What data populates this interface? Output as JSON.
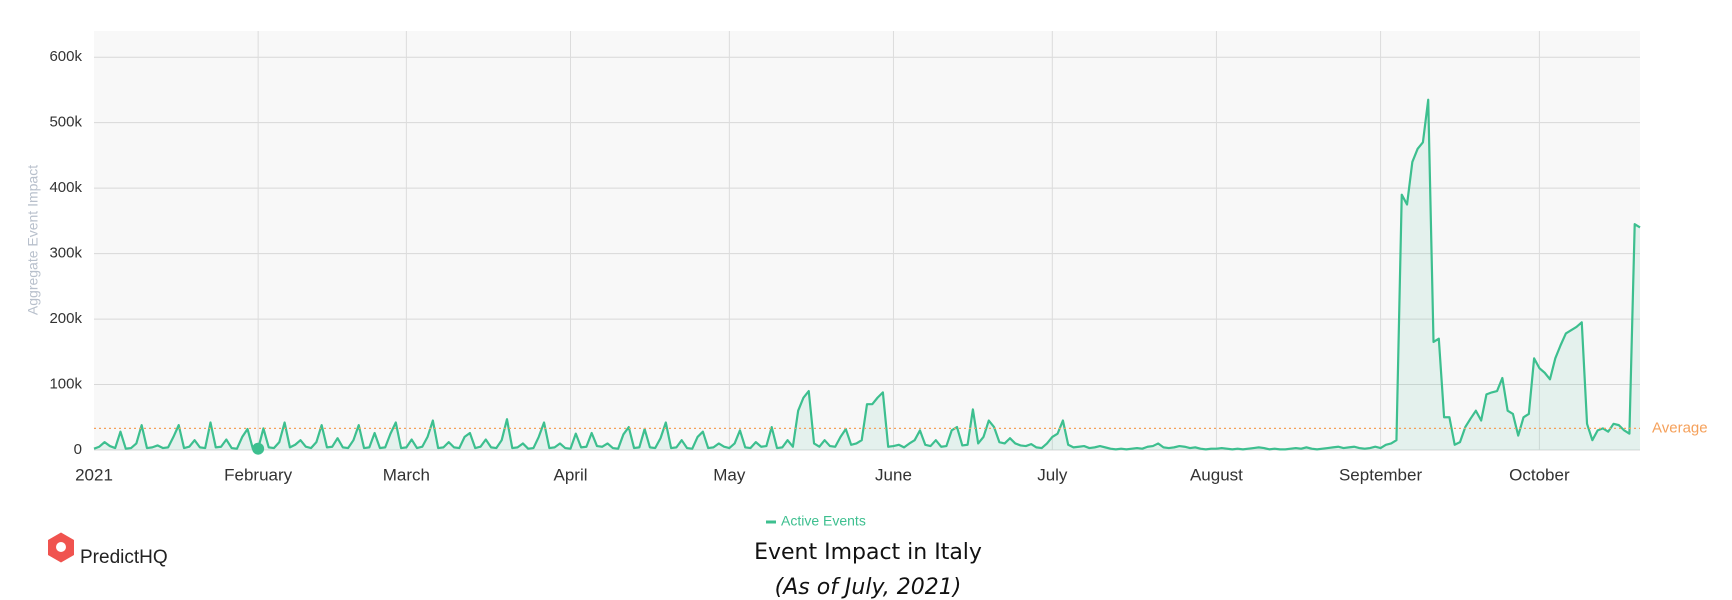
{
  "chart_data": {
    "type": "line",
    "title": "Event Impact in Italy",
    "subtitle": "(As of July, 2021)",
    "y_label": "Aggregate Event Impact",
    "logo": "PredictHQ",
    "categories": [
      "2021",
      null,
      null,
      null,
      null,
      null,
      null,
      null,
      null,
      null,
      null,
      null,
      null,
      null,
      null,
      null,
      null,
      null,
      null,
      null,
      null,
      null,
      null,
      null,
      null,
      null,
      null,
      null,
      null,
      null,
      null,
      "February",
      null,
      null,
      null,
      null,
      null,
      null,
      null,
      null,
      null,
      null,
      null,
      null,
      null,
      null,
      null,
      null,
      null,
      null,
      null,
      null,
      null,
      null,
      null,
      null,
      null,
      null,
      null,
      "March",
      null,
      null,
      null,
      null,
      null,
      null,
      null,
      null,
      null,
      null,
      null,
      null,
      null,
      null,
      null,
      null,
      null,
      null,
      null,
      null,
      null,
      null,
      null,
      null,
      null,
      null,
      null,
      null,
      null,
      null,
      "April",
      null,
      null,
      null,
      null,
      null,
      null,
      null,
      null,
      null,
      null,
      null,
      null,
      null,
      null,
      null,
      null,
      null,
      null,
      null,
      null,
      null,
      null,
      null,
      null,
      null,
      null,
      null,
      null,
      null,
      "May",
      null,
      null,
      null,
      null,
      null,
      null,
      null,
      null,
      null,
      null,
      null,
      null,
      null,
      null,
      null,
      null,
      null,
      null,
      null,
      null,
      null,
      null,
      null,
      null,
      null,
      null,
      null,
      null,
      null,
      null,
      "June",
      null,
      null,
      null,
      null,
      null,
      null,
      null,
      null,
      null,
      null,
      null,
      null,
      null,
      null,
      null,
      null,
      null,
      null,
      null,
      null,
      null,
      null,
      null,
      null,
      null,
      null,
      null,
      null,
      null,
      "July",
      null,
      null,
      null,
      null,
      null,
      null,
      null,
      null,
      null,
      null,
      null,
      null,
      null,
      null,
      null,
      null,
      null,
      null,
      null,
      null,
      null,
      null,
      null,
      null,
      null,
      null,
      null,
      null,
      null,
      null,
      "August",
      null,
      null,
      null,
      null,
      null,
      null,
      null,
      null,
      null,
      null,
      null,
      null,
      null,
      null,
      null,
      null,
      null,
      null,
      null,
      null,
      null,
      null,
      null,
      null,
      null,
      null,
      null,
      null,
      null,
      null,
      "September",
      null,
      null,
      null,
      null,
      null,
      null,
      null,
      null,
      null,
      null,
      null,
      null,
      null,
      null,
      null,
      null,
      null,
      null,
      null,
      null,
      null,
      null,
      null,
      null,
      null,
      null,
      null,
      null,
      null,
      "October",
      null,
      null,
      null,
      null,
      null,
      null,
      null,
      null,
      null,
      null,
      null,
      null,
      null,
      null,
      null,
      null,
      null,
      null,
      null
    ],
    "series": [
      {
        "name": "Active Events",
        "color": "#3dbf8f",
        "values": [
          2000,
          5000,
          12000,
          6000,
          3000,
          28000,
          2000,
          3000,
          10000,
          38000,
          3000,
          4000,
          7000,
          3000,
          4000,
          20000,
          38000,
          3000,
          5000,
          15000,
          4000,
          3000,
          42000,
          4000,
          5000,
          16000,
          3000,
          2000,
          20000,
          32000,
          2000,
          2000,
          33000,
          4000,
          3000,
          12000,
          42000,
          4000,
          8000,
          15000,
          5000,
          3000,
          12000,
          38000,
          4000,
          5000,
          18000,
          4000,
          3000,
          15000,
          38000,
          3000,
          4000,
          26000,
          3000,
          4000,
          25000,
          42000,
          3000,
          4000,
          16000,
          3000,
          5000,
          20000,
          45000,
          3000,
          4000,
          12000,
          4000,
          3000,
          20000,
          26000,
          3000,
          5000,
          16000,
          4000,
          3000,
          15000,
          47000,
          3000,
          4000,
          10000,
          2000,
          3000,
          20000,
          42000,
          3000,
          4000,
          10000,
          3000,
          2000,
          25000,
          4000,
          5000,
          26000,
          6000,
          5000,
          10000,
          3000,
          2000,
          24000,
          35000,
          3000,
          4000,
          32000,
          4000,
          3000,
          18000,
          42000,
          3000,
          4000,
          15000,
          3000,
          2000,
          20000,
          28000,
          3000,
          4000,
          10000,
          5000,
          3000,
          10000,
          30000,
          4000,
          3000,
          12000,
          5000,
          6000,
          35000,
          3000,
          4000,
          15000,
          5000,
          60000,
          80000,
          90000,
          10000,
          5000,
          15000,
          6000,
          5000,
          20000,
          32000,
          8000,
          10000,
          15000,
          70000,
          70000,
          80000,
          88000,
          5000,
          6000,
          8000,
          4000,
          10000,
          15000,
          30000,
          8000,
          6000,
          15000,
          5000,
          6000,
          30000,
          35000,
          7000,
          8000,
          62000,
          10000,
          20000,
          45000,
          35000,
          12000,
          10000,
          18000,
          10000,
          7000,
          6000,
          9000,
          4000,
          3000,
          10000,
          20000,
          25000,
          45000,
          8000,
          4000,
          5000,
          6000,
          3000,
          4000,
          6000,
          4000,
          2000,
          1000,
          2000,
          1000,
          2000,
          3000,
          2000,
          5000,
          6000,
          10000,
          4000,
          3000,
          4000,
          6000,
          5000,
          3000,
          4000,
          2000,
          1000,
          2000,
          2000,
          3000,
          2000,
          1000,
          2000,
          1000,
          2000,
          3000,
          4000,
          3000,
          1000,
          2000,
          1000,
          1000,
          2000,
          3000,
          2000,
          4000,
          2000,
          1000,
          2000,
          3000,
          4000,
          5000,
          3000,
          4000,
          5000,
          3000,
          2000,
          3000,
          5000,
          3000,
          8000,
          10000,
          15000,
          390000,
          375000,
          440000,
          460000,
          470000,
          535000,
          165000,
          170000,
          50000,
          50000,
          8000,
          12000,
          35000,
          48000,
          60000,
          45000,
          85000,
          88000,
          90000,
          110000,
          60000,
          55000,
          22000,
          50000,
          55000,
          140000,
          125000,
          118000,
          108000,
          140000,
          160000,
          178000,
          183000,
          188000,
          195000,
          40000,
          15000,
          30000,
          33000,
          28000,
          40000,
          38000,
          30000,
          25000,
          345000,
          340000
        ]
      }
    ],
    "reference_lines": [
      {
        "label": "Average",
        "value": 33000,
        "color": "#f5a05a"
      }
    ],
    "highlight": 31,
    "ylim": [
      0,
      640000
    ],
    "yticks": [
      0,
      {
        "value": 100000,
        "label": "100k"
      },
      {
        "value": 200000,
        "label": "200k"
      },
      {
        "value": 300000,
        "label": "300k"
      },
      {
        "value": 400000,
        "label": "400k"
      },
      {
        "value": 500000,
        "label": "500k"
      },
      {
        "value": 600000,
        "label": "600k"
      }
    ],
    "grid": true
  }
}
